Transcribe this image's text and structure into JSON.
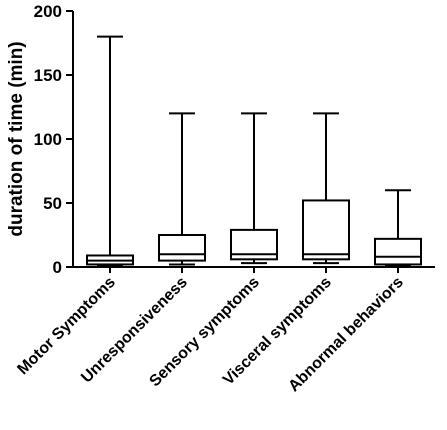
{
  "chart_data": {
    "type": "boxplot",
    "title": "",
    "xlabel": "",
    "ylabel": "duration of time (min)",
    "ylim": [
      0,
      200
    ],
    "yticks": [
      0,
      50,
      100,
      150,
      200
    ],
    "grid": false,
    "categories": [
      "Motor Symptoms",
      "Unresponsiveness",
      "Sensory symptoms",
      "Visceral symptoms",
      "Abnormal behaviors"
    ],
    "boxes": [
      {
        "category": "Motor Symptoms",
        "min": 1,
        "q1": 2,
        "median": 5,
        "q3": 9,
        "max": 180
      },
      {
        "category": "Unresponsiveness",
        "min": 2,
        "q1": 5,
        "median": 10,
        "q3": 25,
        "max": 120
      },
      {
        "category": "Sensory symptoms",
        "min": 3,
        "q1": 6,
        "median": 10,
        "q3": 29,
        "max": 120
      },
      {
        "category": "Visceral symptoms",
        "min": 3,
        "q1": 6,
        "median": 10,
        "q3": 52,
        "max": 120
      },
      {
        "category": "Abnormal behaviors",
        "min": 1,
        "q1": 2,
        "median": 8,
        "q3": 22,
        "max": 60
      }
    ]
  }
}
